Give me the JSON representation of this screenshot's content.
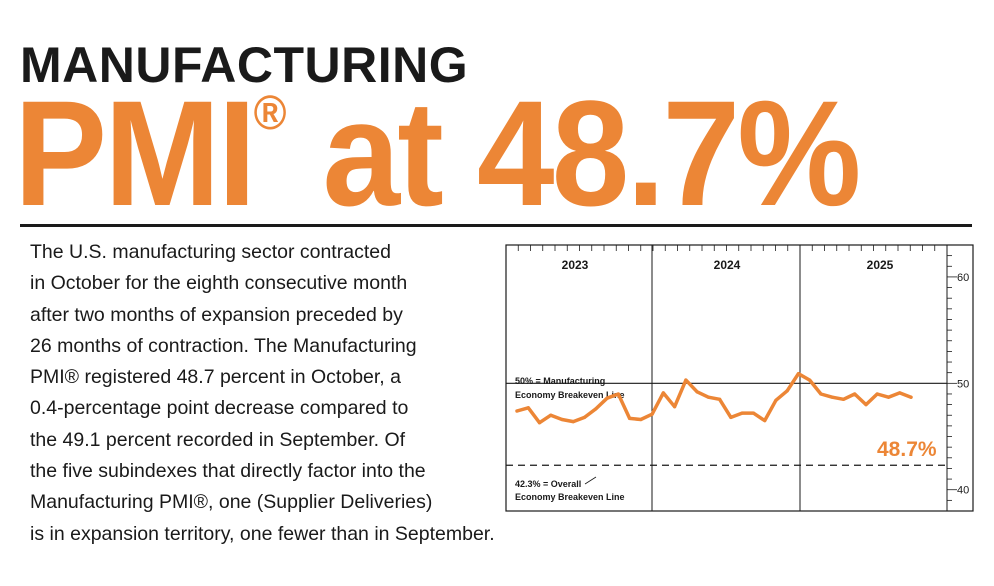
{
  "header": {
    "kicker": "MANUFACTURING",
    "headline_main": "PMI",
    "headline_mark": "®",
    "headline_rest": " at 48.7%"
  },
  "body": {
    "lines": [
      "The U.S. manufacturing sector contracted",
      "in October for the eighth consecutive month",
      "after two months of expansion preceded by",
      "26 months of contraction. The Manufacturing",
      "PMI® registered 48.7 percent in October, a",
      "0.4-percentage point decrease compared to",
      "the 49.1 percent recorded in September. Of",
      "the five subindexes that directly factor into the",
      "Manufacturing PMI®, one (Supplier Deliveries)",
      "is in expansion territory, one fewer than in September."
    ]
  },
  "colors": {
    "accent": "#ec8636",
    "text": "#1a1a1a"
  },
  "chart_data": {
    "type": "line",
    "years": [
      "2023",
      "2024",
      "2025"
    ],
    "y_ticks": [
      60,
      50,
      40
    ],
    "ylim": [
      38,
      63
    ],
    "series": [
      {
        "name": "Manufacturing PMI",
        "values": [
          47.4,
          47.7,
          46.3,
          47.0,
          46.6,
          46.4,
          46.8,
          47.6,
          48.6,
          49.0,
          46.7,
          46.6,
          47.1,
          49.1,
          47.8,
          50.3,
          49.2,
          48.7,
          48.5,
          46.8,
          47.2,
          47.2,
          46.5,
          48.4,
          49.3,
          50.9,
          50.3,
          49.0,
          48.7,
          48.5,
          49.0,
          48.0,
          49.0,
          48.7,
          49.1,
          48.7
        ]
      }
    ],
    "reference_lines": [
      {
        "value": 50,
        "label_line1": "50% = Manufacturing",
        "label_line2": "Economy Breakeven Line",
        "style": "solid"
      },
      {
        "value": 42.3,
        "label_line1": "42.3% = Overall",
        "label_line2": "Economy Breakeven Line",
        "style": "dashed"
      }
    ],
    "annotation": "48.7%"
  }
}
